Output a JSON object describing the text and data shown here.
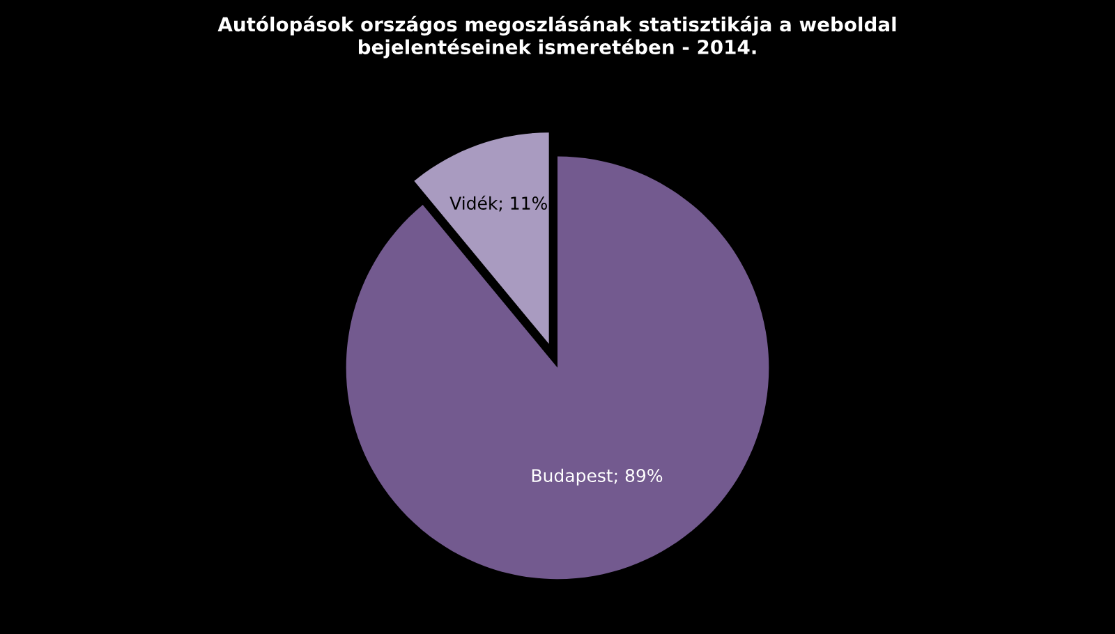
{
  "chart_data": {
    "type": "pie",
    "title": "Autólopások országos megoszlásának statisztikája a weboldal\nbejelentéseinek ismeretében - 2014.",
    "categories": [
      "Vidék",
      "Budapest"
    ],
    "values": [
      11,
      89
    ],
    "colors": [
      "#a99bc0",
      "#735a8f"
    ],
    "value_labels": [
      "11%",
      "89%"
    ]
  }
}
